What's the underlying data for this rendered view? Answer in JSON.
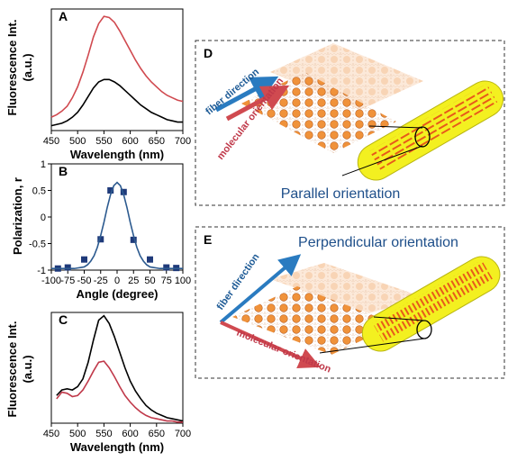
{
  "chart_data": [
    {
      "type": "line",
      "label": "A",
      "ylabel": [
        "Fluorescence Int.",
        "(a.u.)"
      ],
      "xlabel": "Wavelength (nm)",
      "xlim": [
        450,
        700
      ],
      "xticks": [
        450,
        500,
        550,
        600,
        650,
        700
      ],
      "ylim": [
        0,
        100
      ],
      "series": [
        {
          "color": "#d0494f",
          "x": [
            450,
            460,
            470,
            480,
            490,
            500,
            510,
            520,
            530,
            540,
            550,
            560,
            570,
            580,
            590,
            600,
            610,
            620,
            630,
            640,
            650,
            660,
            670,
            680,
            690,
            700
          ],
          "values": [
            11,
            13,
            16,
            20,
            27,
            36,
            48,
            62,
            77,
            88,
            94,
            93,
            89,
            82,
            74,
            66,
            58,
            51,
            45,
            40,
            36,
            32,
            29,
            27,
            25,
            24
          ]
        },
        {
          "color": "#000000",
          "x": [
            450,
            460,
            470,
            480,
            490,
            500,
            510,
            520,
            530,
            540,
            550,
            560,
            570,
            580,
            590,
            600,
            610,
            620,
            630,
            640,
            650,
            660,
            670,
            680,
            690,
            700
          ],
          "values": [
            4,
            5,
            6,
            8,
            11,
            15,
            21,
            28,
            35,
            40,
            42,
            42,
            40,
            37,
            33,
            29,
            25,
            21,
            18,
            15,
            13,
            11,
            9,
            8,
            7,
            7
          ]
        }
      ]
    },
    {
      "type": "scatter",
      "label": "B",
      "ylabel": [
        "Polarization, r"
      ],
      "xlabel": "Angle (degree)",
      "xlim": [
        -100,
        100
      ],
      "xticks": [
        -100,
        -75,
        -50,
        -25,
        0,
        25,
        50,
        75,
        100
      ],
      "ylim": [
        -1,
        1
      ],
      "yticks": [
        -1,
        -0.5,
        0,
        0.5,
        1
      ],
      "series": [
        {
          "type": "scatter",
          "color": "#1f3a7a",
          "x": [
            -90,
            -75,
            -50,
            -25,
            -10,
            10,
            25,
            50,
            75,
            90
          ],
          "values": [
            -0.97,
            -0.95,
            -0.8,
            -0.42,
            0.5,
            0.47,
            -0.43,
            -0.8,
            -0.95,
            -0.96
          ]
        },
        {
          "type": "line",
          "color": "#2c5a8f",
          "x": [
            -100,
            -95,
            -90,
            -85,
            -80,
            -75,
            -70,
            -65,
            -60,
            -55,
            -50,
            -45,
            -40,
            -35,
            -30,
            -25,
            -20,
            -15,
            -10,
            -5,
            0,
            5,
            10,
            15,
            20,
            25,
            30,
            35,
            40,
            45,
            50,
            55,
            60,
            65,
            70,
            75,
            80,
            85,
            90,
            95,
            100
          ],
          "values": [
            -0.97,
            -0.97,
            -0.97,
            -0.97,
            -0.97,
            -0.97,
            -0.97,
            -0.97,
            -0.96,
            -0.95,
            -0.94,
            -0.9,
            -0.83,
            -0.73,
            -0.57,
            -0.35,
            -0.1,
            0.18,
            0.42,
            0.59,
            0.65,
            0.59,
            0.42,
            0.18,
            -0.1,
            -0.35,
            -0.57,
            -0.73,
            -0.83,
            -0.9,
            -0.94,
            -0.95,
            -0.96,
            -0.97,
            -0.97,
            -0.97,
            -0.97,
            -0.97,
            -0.97,
            -0.97,
            -0.97
          ]
        }
      ]
    },
    {
      "type": "line",
      "label": "C",
      "ylabel": [
        "Fluorescence Int.",
        "(a.u.)"
      ],
      "xlabel": "Wavelength (nm)",
      "xlim": [
        450,
        700
      ],
      "xticks": [
        450,
        500,
        550,
        600,
        650,
        700
      ],
      "ylim": [
        0,
        100
      ],
      "series": [
        {
          "color": "#000000",
          "x": [
            460,
            470,
            480,
            490,
            500,
            510,
            520,
            530,
            540,
            550,
            560,
            570,
            580,
            590,
            600,
            610,
            620,
            630,
            640,
            650,
            660,
            670,
            680,
            690,
            700
          ],
          "values": [
            25,
            30,
            31,
            30,
            33,
            40,
            55,
            75,
            93,
            97,
            90,
            78,
            64,
            50,
            38,
            29,
            22,
            16,
            12,
            9,
            7,
            5,
            4,
            3,
            2
          ]
        },
        {
          "color": "#c0394a",
          "x": [
            460,
            470,
            480,
            490,
            500,
            510,
            520,
            530,
            540,
            550,
            560,
            570,
            580,
            590,
            600,
            610,
            620,
            630,
            640,
            650,
            660,
            670,
            680,
            690,
            700
          ],
          "values": [
            22,
            28,
            27,
            24,
            25,
            30,
            38,
            47,
            55,
            56,
            50,
            42,
            33,
            25,
            19,
            14,
            10,
            7,
            5,
            4,
            3,
            2,
            2,
            1,
            1
          ]
        }
      ]
    }
  ],
  "diagrams": [
    {
      "label": "D",
      "fiber": "fiber direction",
      "molecular": "molecular orientation",
      "caption": "Parallel orientation"
    },
    {
      "label": "E",
      "caption": "Perpendicular orientation",
      "fiber": "fiber direction",
      "molecular": "molecular orientation"
    }
  ]
}
